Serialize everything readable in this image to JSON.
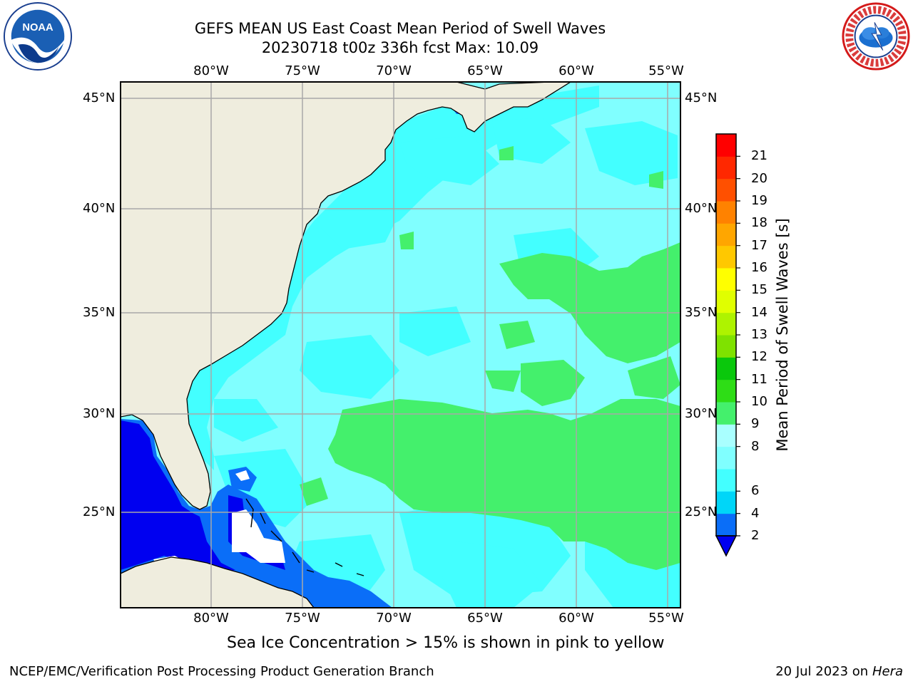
{
  "title": {
    "line1": "GEFS MEAN US East Coast Mean Period of Swell Waves",
    "line2": "20230718 t00z 336h fcst   Max: 10.09"
  },
  "map": {
    "lon_labels": [
      "80°W",
      "75°W",
      "70°W",
      "65°W",
      "60°W",
      "55°W"
    ],
    "lat_labels": [
      "45°N",
      "40°N",
      "35°N",
      "30°N",
      "25°N"
    ],
    "extent": {
      "lon_min": -85,
      "lon_max": -54.3,
      "lat_min": 20.5,
      "lat_max": 45.8
    },
    "colors": {
      "land": "#efedde",
      "grid": "#a8a8a8",
      "nodata": "#ffffff"
    }
  },
  "colorbar": {
    "title": "Mean Period of Swell Waves [s]",
    "levels": [
      "2",
      "4",
      "6",
      "7",
      "8",
      "9",
      "10",
      "11",
      "12",
      "13",
      "14",
      "15",
      "16",
      "17",
      "18",
      "19",
      "20",
      "21"
    ],
    "tick_labels": [
      "2",
      "4",
      "6",
      "8",
      "9",
      "10",
      "11",
      "12",
      "13",
      "14",
      "15",
      "16",
      "17",
      "18",
      "19",
      "20",
      "21"
    ],
    "colors": [
      "#0a6ef8",
      "#00d6f8",
      "#43ffff",
      "#80ffff",
      "#a9ffff",
      "#44f06c",
      "#2edd16",
      "#0ac80c",
      "#7fe200",
      "#aef300",
      "#e0ff00",
      "#ffff00",
      "#ffc800",
      "#ffa600",
      "#ff8200",
      "#ff5000",
      "#ff2800",
      "#ff0000"
    ],
    "extend_color": "#0000f0",
    "extend": "min"
  },
  "caption": "Sea Ice Concentration > 15% is shown in pink to yellow",
  "footer": {
    "left": "NCEP/EMC/Verification Post Processing Product Generation Branch",
    "right_date": "20 Jul 2023 on",
    "right_host": "Hera"
  },
  "logos": {
    "noaa_icon": "noaa-logo",
    "noaa_text": "NOAA",
    "nws_icon": "nws-logo"
  }
}
